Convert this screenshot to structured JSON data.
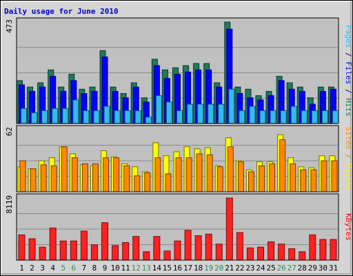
{
  "chart_data": {
    "type": "bar",
    "title": "Daily usage for June 2010",
    "categories": [
      "1",
      "2",
      "3",
      "4",
      "5",
      "6",
      "7",
      "8",
      "9",
      "10",
      "11",
      "12",
      "13",
      "14",
      "15",
      "16",
      "17",
      "18",
      "19",
      "20",
      "21",
      "22",
      "23",
      "24",
      "25",
      "26",
      "27",
      "28",
      "29",
      "30",
      "31"
    ],
    "weekend_days": [
      "5",
      "6",
      "12",
      "13",
      "19",
      "20",
      "26",
      "27"
    ],
    "panels": [
      {
        "name": "pages-files-hits",
        "max_label": "473",
        "ylim": [
          0,
          473
        ],
        "label_parts": [
          {
            "text": "Pages",
            "color": "#33bbee"
          },
          {
            "text": " / ",
            "color": "#000080"
          },
          {
            "text": "Files",
            "color": "#0000ff"
          },
          {
            "text": " / ",
            "color": "#000080"
          },
          {
            "text": "Hits",
            "color": "#1f7a5c"
          }
        ],
        "series": [
          {
            "name": "Hits",
            "color": "#1f7a5c",
            "values": [
              200,
              170,
              190,
              250,
              170,
              230,
              160,
              170,
              340,
              170,
              140,
              190,
              120,
              300,
              250,
              260,
              270,
              280,
              280,
              190,
              473,
              170,
              160,
              130,
              150,
              220,
              190,
              170,
              120,
              170,
              170
            ]
          },
          {
            "name": "Files",
            "color": "#0000ff",
            "values": [
              180,
              150,
              170,
              220,
              150,
              200,
              140,
              150,
              310,
              150,
              120,
              170,
              100,
              270,
              210,
              230,
              240,
              250,
              250,
              170,
              440,
              140,
              120,
              110,
              130,
              200,
              160,
              150,
              90,
              150,
              160
            ]
          },
          {
            "name": "Pages",
            "color": "#33bbee",
            "values": [
              70,
              50,
              60,
              70,
              70,
              110,
              60,
              60,
              80,
              60,
              60,
              60,
              30,
              130,
              100,
              60,
              90,
              90,
              90,
              90,
              160,
              60,
              80,
              60,
              60,
              60,
              80,
              60,
              60,
              60,
              60
            ]
          }
        ]
      },
      {
        "name": "sites-visits",
        "max_label": "62",
        "ylim": [
          0,
          62
        ],
        "label_parts": [
          {
            "text": "Sites",
            "color": "#ff8800"
          },
          {
            "text": " / ",
            "color": "#c8a000"
          },
          {
            "text": "Visits",
            "color": "#ffee00"
          }
        ],
        "series": [
          {
            "name": "Visits",
            "color": "#ffff00",
            "values": [
              25,
              23,
              31,
              34,
              45,
              38,
              27,
              26,
              41,
              35,
              28,
              25,
              20,
              49,
              36,
              40,
              45,
              43,
              44,
              26,
              54,
              31,
              22,
              30,
              30,
              57,
              34,
              25,
              24,
              36,
              36
            ]
          },
          {
            "name": "Sites",
            "color": "#ff8800",
            "values": [
              31,
              23,
              27,
              26,
              45,
              34,
              28,
              28,
              34,
              34,
              26,
              16,
              19,
              34,
              18,
              34,
              34,
              38,
              37,
              25,
              45,
              30,
              20,
              26,
              28,
              52,
              28,
              22,
              22,
              31,
              31
            ]
          }
        ]
      },
      {
        "name": "kbytes",
        "max_label": "8119",
        "ylim": [
          0,
          8119
        ],
        "label_parts": [
          {
            "text": "KBytes",
            "color": "#ff0000"
          }
        ],
        "series": [
          {
            "name": "KBytes",
            "color": "#ff2020",
            "values": [
              3300,
              2800,
              1700,
              4200,
              2500,
              2500,
              3800,
              2000,
              4900,
              1900,
              2300,
              3100,
              1100,
              3100,
              1200,
              2500,
              3900,
              3200,
              3400,
              2100,
              8119,
              3600,
              1600,
              1700,
              2400,
              2100,
              1500,
              1100,
              3300,
              2700,
              2700
            ]
          }
        ]
      }
    ]
  }
}
